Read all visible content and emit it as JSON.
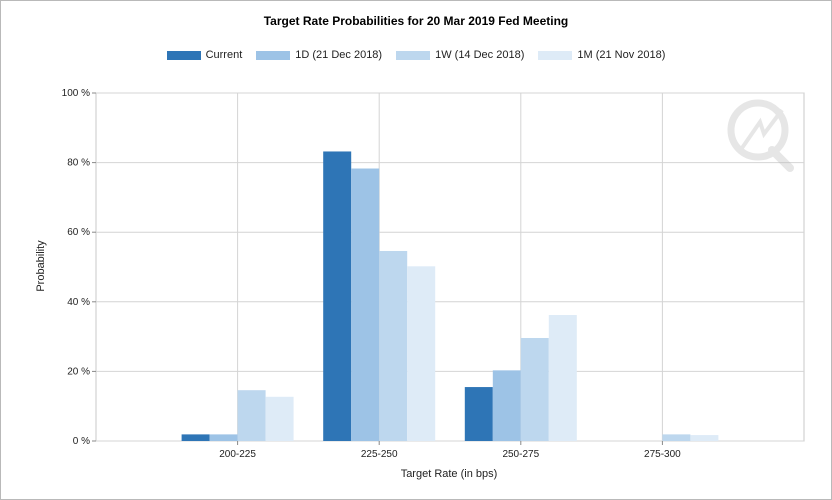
{
  "chart_data": {
    "type": "bar",
    "title": "Target Rate Probabilities for 20 Mar 2019 Fed Meeting",
    "xlabel": "Target Rate (in bps)",
    "ylabel": "Probability",
    "categories": [
      "200-225",
      "225-250",
      "250-275",
      "275-300"
    ],
    "ylim": [
      0,
      100
    ],
    "yticks": [
      {
        "value": 0,
        "label": "0 %"
      },
      {
        "value": 20,
        "label": "20 %"
      },
      {
        "value": 40,
        "label": "40 %"
      },
      {
        "value": 60,
        "label": "60 %"
      },
      {
        "value": 80,
        "label": "80 %"
      },
      {
        "value": 100,
        "label": "100 %"
      }
    ],
    "grid": true,
    "legend_position": "top",
    "series": [
      {
        "name": "Current",
        "color": "#2e75b6",
        "values": [
          1.9,
          83.2,
          15.5,
          0
        ]
      },
      {
        "name": "1D (21 Dec 2018)",
        "color": "#9dc3e6",
        "values": [
          1.9,
          78.3,
          20.3,
          0
        ]
      },
      {
        "name": "1W (14 Dec 2018)",
        "color": "#bdd7ee",
        "values": [
          14.6,
          54.6,
          29.6,
          1.9
        ]
      },
      {
        "name": "1M (21 Nov 2018)",
        "color": "#deebf7",
        "values": [
          12.7,
          50.2,
          36.2,
          1.7
        ]
      }
    ]
  }
}
